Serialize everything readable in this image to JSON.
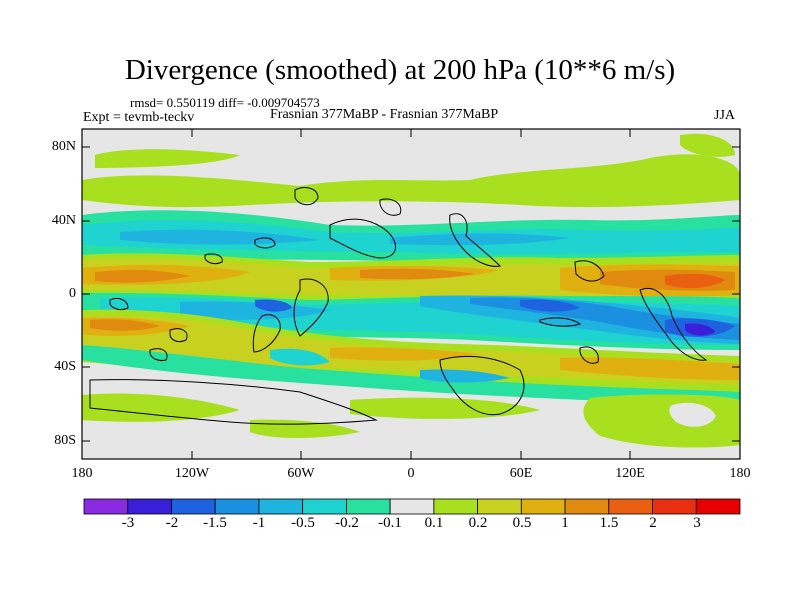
{
  "title": "Divergence (smoothed) at 200 hPa (10**6 m/s)",
  "stats": "rmsd= 0.550119 diff= -0.009704573",
  "experiment": "Expt = tevmb-teckv",
  "runs": "Frasnian 377MaBP - Frasnian 377MaBP",
  "season": "JJA",
  "y_ticks": [
    "80N",
    "40N",
    "0",
    "40S",
    "80S"
  ],
  "x_ticks": [
    "180",
    "120W",
    "60W",
    "0",
    "60E",
    "120E",
    "180"
  ],
  "colorbar": {
    "labels": [
      "-3",
      "-2",
      "-1.5",
      "-1",
      "-0.5",
      "-0.2",
      "-0.1",
      "0.1",
      "0.2",
      "0.5",
      "1",
      "1.5",
      "2",
      "3"
    ],
    "colors": [
      "#8a2be2",
      "#3a1fd8",
      "#1f62e0",
      "#1b8fe0",
      "#1fb4e0",
      "#1fd4d0",
      "#28e0a0",
      "#e6e6e6",
      "#a8e020",
      "#c8d020",
      "#e0b010",
      "#e08a10",
      "#e86010",
      "#e83010",
      "#e80000"
    ]
  },
  "map_colors": {
    "background": "#e6e6e6",
    "pos_weak": "#a8e020",
    "pos_mid": "#c8d020",
    "pos_strong": "#e0b010",
    "pos_vstrong": "#e08a10",
    "pos_extreme": "#e86010",
    "neg_weak": "#28e0a0",
    "neg_mid": "#1fd4d0",
    "neg_strong": "#1fb4e0",
    "neg_vstrong": "#1b8fe0",
    "neg_extreme": "#1f62e0",
    "neg_peak": "#3a1fd8",
    "coast": "#000000"
  }
}
